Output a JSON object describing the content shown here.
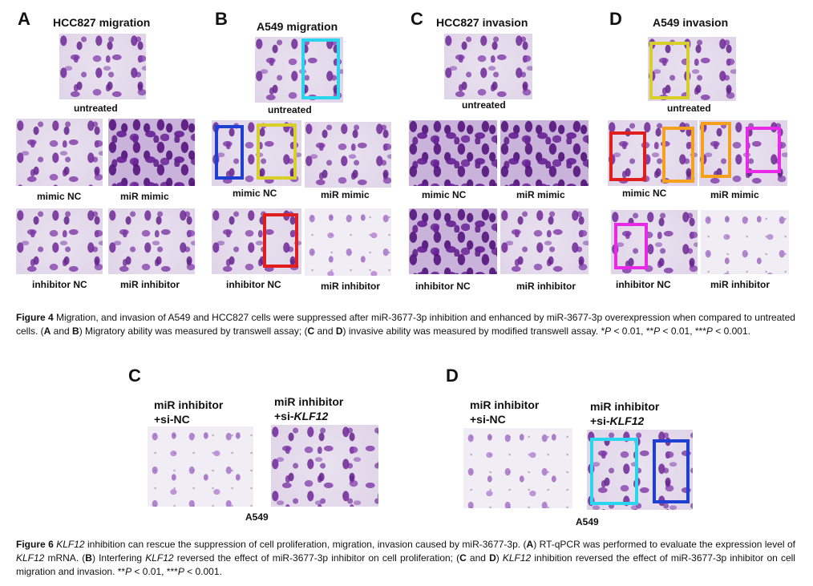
{
  "figure4": {
    "panels": {
      "A": {
        "letter": "A",
        "title": "HCC827 migration",
        "untreated": "untreated",
        "mimic_nc": "mimic NC",
        "mir_mimic": "miR mimic",
        "inhibitor_nc": "inhibitor NC",
        "mir_inhibitor": "miR inhibitor"
      },
      "B": {
        "letter": "B",
        "title": "A549 migration",
        "untreated": "untreated",
        "mimic_nc": "mimic NC",
        "mir_mimic": "miR mimic",
        "inhibitor_nc": "inhibitor NC",
        "mir_inhibitor": "miR inhibitor"
      },
      "C": {
        "letter": "C",
        "title": "HCC827 invasion",
        "untreated": "untreated",
        "mimic_nc": "mimic NC",
        "mir_mimic": "miR mimic",
        "inhibitor_nc": "inhibitor NC",
        "mir_inhibitor": "miR inhibitor"
      },
      "D": {
        "letter": "D",
        "title": "A549 invasion",
        "untreated": "untreated",
        "mimic_nc": "mimic NC",
        "mir_mimic": "miR mimic",
        "inhibitor_nc": "inhibitor NC",
        "mir_inhibitor": "miR inhibitor"
      }
    },
    "caption": {
      "label": "Figure 4",
      "t1": " Migration, and invasion of A549 and HCC827 cells were suppressed after miR-3677-3p inhibition and enhanced by miR-3677-3p overexpression when compared to untreated cells. (",
      "a": "A",
      "and1": " and ",
      "b": "B",
      "t2": ") Migratory ability was measured by transwell assay; (",
      "c": "C",
      "and2": " and ",
      "d": "D",
      "t3": ") invasive ability was measured by modified transwell assay. *",
      "p1": "P",
      "t4": " < 0.01, **",
      "p2": "P",
      "t5": " < 0.01, ***",
      "p3": "P",
      "t6": " < 0.001."
    }
  },
  "figure6": {
    "panel_c": {
      "letter": "C",
      "label1_line1": "miR inhibitor",
      "label1_line2": "+si-NC",
      "label2_line1": "miR inhibitor",
      "label2_line2_prefix": "+si-",
      "label2_line2_gene": "KLF12",
      "cell_line": "A549"
    },
    "panel_d": {
      "letter": "D",
      "label1_line1": "miR inhibitor",
      "label1_line2": "+si-NC",
      "label2_line1": "miR inhibitor",
      "label2_line2_prefix": "+si-",
      "label2_line2_gene": "KLF12",
      "cell_line": "A549"
    },
    "caption": {
      "label": "Figure 6",
      "gene1": "KLF12",
      "t1": " inhibition can rescue the suppression of cell proliferation, migration, invasion caused by miR-3677-3p. (",
      "a": "A",
      "t2": ") RT-qPCR was performed to evaluate the expression level of ",
      "gene2": "KLF12",
      "t3": " mRNA. (",
      "b": "B",
      "t4": ") Interfering ",
      "gene3": "KLF12",
      "t5": " reversed the effect of miR-3677-3p inhibitor on cell proliferation; (",
      "c": "C",
      "and1": " and ",
      "d": "D",
      "t6": ") ",
      "gene4": "KLF12",
      "t7": " inhibition reversed the effect of miR-3677-3p inhibitor on cell migration and invasion. **",
      "p1": "P",
      "t8": " < 0.01, ***",
      "p2": "P",
      "t9": " < 0.001."
    }
  },
  "highlight_colors": {
    "cyan": "#29d6ee",
    "yellow": "#d8d02a",
    "blue": "#1f3fd0",
    "red": "#e01e1e",
    "orange": "#f4a11e",
    "magenta": "#e829e8"
  }
}
